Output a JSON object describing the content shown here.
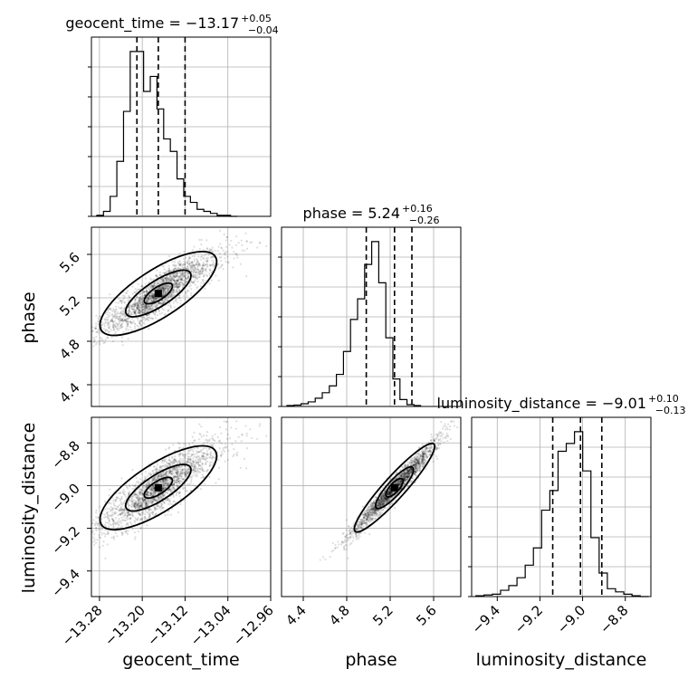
{
  "chart_data": {
    "type": "corner",
    "parameters": [
      "geocent_time",
      "phase",
      "luminosity_distance"
    ],
    "titles": [
      {
        "name": "geocent_time",
        "median": "−13.17",
        "plus": "+0.05",
        "minus": "−0.04"
      },
      {
        "name": "phase",
        "median": "5.24",
        "plus": "+0.16",
        "minus": "−0.26"
      },
      {
        "name": "luminosity_distance",
        "median": "−9.01",
        "plus": "+0.10",
        "minus": "−0.13"
      }
    ],
    "ranges": [
      [
        -13.295,
        -12.96
      ],
      [
        4.2,
        5.85
      ],
      [
        -9.52,
        -8.68
      ]
    ],
    "ticks": {
      "geocent_time": [
        -13.28,
        -13.2,
        -13.12,
        -13.04,
        -12.96
      ],
      "phase": [
        4.4,
        4.8,
        5.2,
        5.6
      ],
      "luminosity_distance": [
        -9.4,
        -9.2,
        -9.0,
        -8.8
      ]
    },
    "tick_labels": {
      "geocent_time": [
        "−13.28",
        "−13.20",
        "−13.12",
        "−13.04",
        "−12.96"
      ],
      "phase": [
        "4.4",
        "4.8",
        "5.2",
        "5.6"
      ],
      "luminosity_distance": [
        "−9.4",
        "−9.2",
        "−9.0",
        "−8.8"
      ]
    },
    "quantiles": {
      "geocent_time": [
        -13.21,
        -13.17,
        -13.12
      ],
      "phase": [
        4.98,
        5.24,
        5.4
      ],
      "luminosity_distance": [
        -9.14,
        -9.01,
        -8.91
      ]
    },
    "histograms": {
      "geocent_time": {
        "start": -13.285,
        "bin_width": 0.0125,
        "counts": [
          2,
          10,
          40,
          110,
          210,
          330,
          330,
          250,
          280,
          215,
          155,
          130,
          75,
          40,
          28,
          14,
          10,
          6,
          2,
          2,
          0
        ]
      },
      "phase": {
        "start": 4.25,
        "bin_width": 0.065,
        "counts": [
          2,
          3,
          6,
          10,
          18,
          30,
          45,
          70,
          120,
          190,
          235,
          310,
          360,
          270,
          150,
          60,
          15,
          4,
          2
        ]
      },
      "luminosity_distance": {
        "start": -9.5,
        "bin_width": 0.0385,
        "counts": [
          1,
          2,
          3,
          8,
          14,
          24,
          40,
          62,
          110,
          135,
          185,
          195,
          210,
          160,
          75,
          30,
          10,
          6,
          3,
          1,
          0
        ]
      }
    },
    "grid": true,
    "scatter_points": "samples shown as faint gray dots with 2D density contours"
  }
}
